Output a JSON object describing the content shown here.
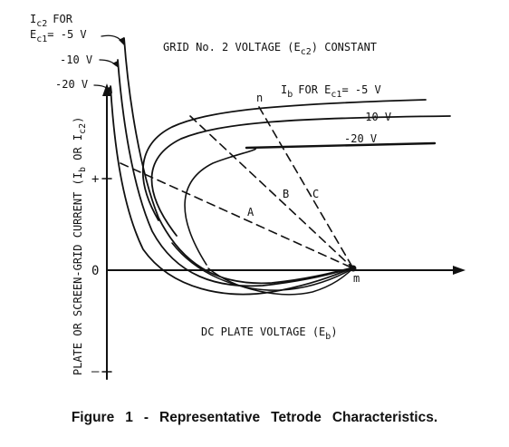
{
  "diagram": {
    "top_left_label": {
      "line1": "I",
      "line1_sub": "c2",
      "line1_rest": "FOR",
      "line2": "E",
      "line2_sub": "c1",
      "line2_rest": "= -5 V"
    },
    "screen_curve_labels": [
      "-10 V",
      "-20 V"
    ],
    "grid_voltage_text": "GRID No. 2 VOLTAGE (E",
    "grid_voltage_sub": "c2",
    "grid_voltage_rest": ") CONSTANT",
    "ib_label": "I",
    "ib_sub": "b",
    "ib_rest": "FOR E",
    "ib_sub2": "c1",
    "ib_rest2": "= -5 V",
    "plate_curve_labels": [
      "-10 V",
      "-20 V"
    ],
    "point_n": "n",
    "point_m": "m",
    "line_labels": [
      "A",
      "B",
      "C"
    ],
    "y_plus": "+",
    "y_zero": "0",
    "y_minus": "–",
    "y_axis_label": "PLATE OR SCREEN-GRID CURRENT (I",
    "y_axis_sub1": "b",
    "y_axis_mid": " OR I",
    "y_axis_sub2": "c2",
    "y_axis_end": ")",
    "x_axis_label": "DC PLATE VOLTAGE (E",
    "x_axis_sub": "b",
    "x_axis_end": ")"
  },
  "caption": {
    "words": [
      "Figure",
      "1",
      "-",
      "Representative",
      "Tetrode",
      "Characteristics."
    ]
  }
}
